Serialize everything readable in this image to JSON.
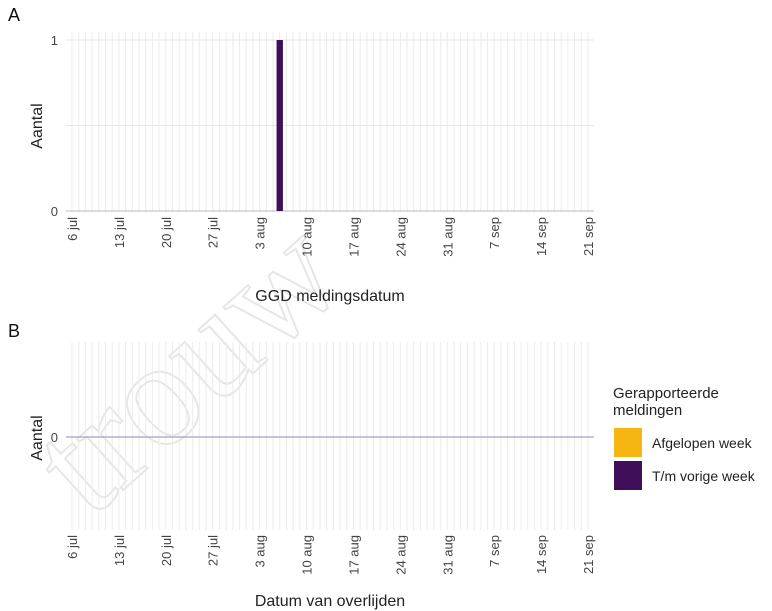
{
  "chart_data": [
    {
      "panel": "A",
      "type": "bar",
      "xlabel": "GGD meldingsdatum",
      "ylabel": "Aantal",
      "x_ticks": [
        "6 jul",
        "13 jul",
        "20 jul",
        "27 jul",
        "3 aug",
        "10 aug",
        "17 aug",
        "24 aug",
        "31 aug",
        "7 sep",
        "14 sep",
        "21 sep"
      ],
      "x_range": [
        "2020-07-06",
        "2020-09-21"
      ],
      "y_ticks": [
        "0",
        "1"
      ],
      "ylim": [
        0,
        1
      ],
      "grid": true,
      "series": [
        {
          "name": "T/m vorige week",
          "color": "#3f0f59",
          "points": [
            {
              "x": "2020-08-06",
              "y": 1
            }
          ]
        },
        {
          "name": "Afgelopen week",
          "color": "#f7b514",
          "points": []
        }
      ]
    },
    {
      "panel": "B",
      "type": "bar",
      "xlabel": "Datum van overlijden",
      "ylabel": "Aantal",
      "x_ticks": [
        "6 jul",
        "13 jul",
        "20 jul",
        "27 jul",
        "3 aug",
        "10 aug",
        "17 aug",
        "24 aug",
        "31 aug",
        "7 sep",
        "14 sep",
        "21 sep"
      ],
      "x_range": [
        "2020-07-06",
        "2020-09-21"
      ],
      "y_ticks": [
        "0"
      ],
      "grid": true,
      "series": [
        {
          "name": "T/m vorige week",
          "color": "#3f0f59",
          "points": []
        },
        {
          "name": "Afgelopen week",
          "color": "#f7b514",
          "points": []
        }
      ]
    }
  ],
  "legend": {
    "title_line1": "Gerapporteerde",
    "title_line2": "meldingen",
    "position": "right",
    "items": [
      {
        "label": "Afgelopen week",
        "color": "#f7b514"
      },
      {
        "label": "T/m vorige week",
        "color": "#3f0f59"
      }
    ]
  },
  "watermark": "trouw"
}
